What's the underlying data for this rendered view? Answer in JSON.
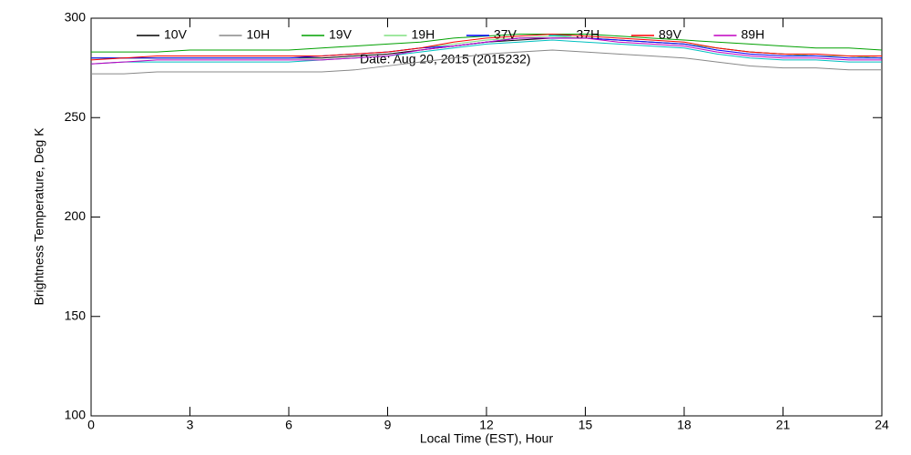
{
  "chart_data": {
    "type": "line",
    "x_label": "Local Time (EST), Hour",
    "y_label": "Brightness Temperature, Deg K",
    "annotation": "Date: Aug 20, 2015 (2015232)",
    "x": [
      0,
      1,
      2,
      3,
      4,
      5,
      6,
      7,
      8,
      9,
      10,
      11,
      12,
      13,
      14,
      15,
      16,
      17,
      18,
      19,
      20,
      21,
      22,
      23,
      24
    ],
    "xlim": [
      0,
      24
    ],
    "xticks": [
      0,
      3,
      6,
      9,
      12,
      15,
      18,
      21,
      24
    ],
    "ylim": [
      100,
      300
    ],
    "yticks": [
      100,
      150,
      200,
      250,
      300
    ],
    "legend": "top",
    "series": [
      {
        "name": "10V",
        "color": "#000000",
        "values": [
          280,
          280,
          280,
          280,
          280,
          280,
          280,
          280,
          281,
          282,
          284,
          286,
          288,
          289,
          290,
          290,
          289,
          288,
          287,
          285,
          283,
          282,
          281,
          281,
          280
        ]
      },
      {
        "name": "10H",
        "color": "#888888",
        "values": [
          272,
          272,
          273,
          273,
          273,
          273,
          273,
          273,
          274,
          276,
          278,
          280,
          282,
          283,
          284,
          283,
          282,
          281,
          280,
          278,
          276,
          275,
          275,
          274,
          274
        ]
      },
      {
        "name": "19V",
        "color": "#00a000",
        "values": [
          283,
          283,
          283,
          284,
          284,
          284,
          284,
          285,
          286,
          287,
          288,
          290,
          291,
          292,
          292,
          292,
          291,
          290,
          289,
          288,
          287,
          286,
          285,
          285,
          284
        ]
      },
      {
        "name": "19H",
        "color": "#80e080",
        "values": [
          280,
          280,
          280,
          280,
          280,
          280,
          280,
          281,
          282,
          283,
          285,
          287,
          289,
          290,
          291,
          290,
          289,
          288,
          287,
          285,
          283,
          282,
          281,
          281,
          280
        ]
      },
      {
        "name": "37V",
        "color": "#0000ff",
        "values": [
          280,
          280,
          280,
          280,
          280,
          280,
          280,
          281,
          282,
          283,
          285,
          286,
          288,
          290,
          290,
          290,
          289,
          288,
          287,
          284,
          282,
          281,
          281,
          280,
          280
        ]
      },
      {
        "name": "37H",
        "color": "#00c0c0",
        "values": [
          277,
          278,
          278,
          278,
          278,
          278,
          278,
          279,
          280,
          281,
          283,
          285,
          287,
          288,
          289,
          288,
          287,
          286,
          285,
          282,
          280,
          279,
          279,
          278,
          278
        ]
      },
      {
        "name": "89V",
        "color": "#ff0000",
        "values": [
          279,
          280,
          281,
          281,
          281,
          281,
          281,
          281,
          282,
          283,
          285,
          288,
          290,
          291,
          292,
          291,
          290,
          289,
          288,
          285,
          283,
          282,
          282,
          281,
          281
        ]
      },
      {
        "name": "89H",
        "color": "#c000c0",
        "values": [
          277,
          278,
          279,
          279,
          279,
          279,
          279,
          279,
          280,
          281,
          284,
          286,
          288,
          290,
          290,
          290,
          288,
          287,
          286,
          283,
          281,
          280,
          280,
          279,
          279
        ]
      }
    ]
  }
}
